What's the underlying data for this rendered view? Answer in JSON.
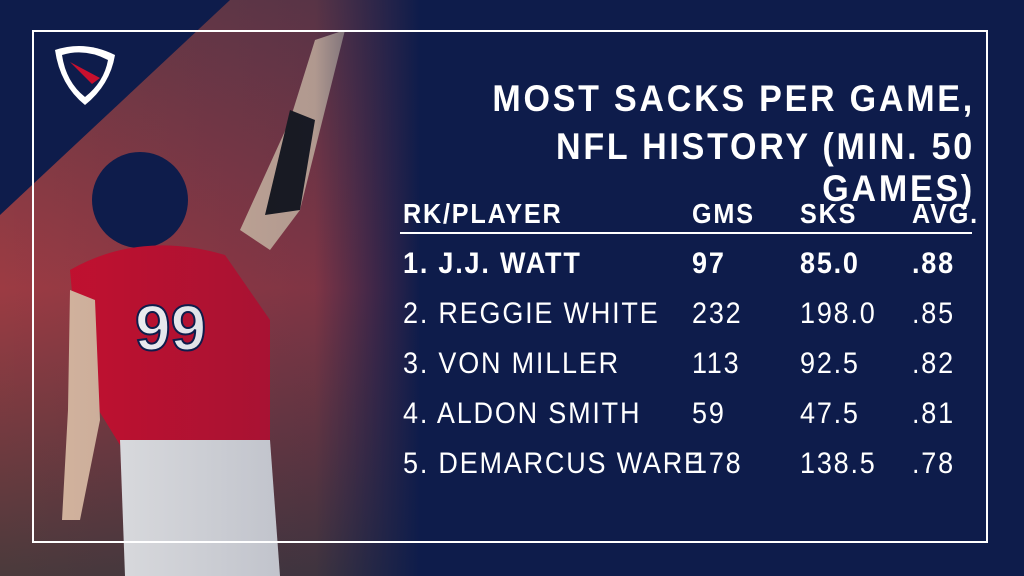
{
  "title": [
    "MOST SACKS PER GAME,",
    "NFL HISTORY (MIN. 50 GAMES)"
  ],
  "table": {
    "header": [
      "RK/PLAYER",
      "GMS",
      "SKS",
      "AVG."
    ],
    "rows": [
      [
        "1. J.J. WATT",
        "97",
        "85.0",
        ".88"
      ],
      [
        "2. REGGIE WHITE",
        "232",
        "198.0",
        ".85"
      ],
      [
        "3. VON MILLER",
        "113",
        "92.5",
        ".82"
      ],
      [
        "4. ALDON SMITH",
        "59",
        "47.5",
        ".81"
      ],
      [
        "5. DEMARCUS WARE",
        "178",
        "138.5",
        ".78"
      ]
    ]
  }
}
